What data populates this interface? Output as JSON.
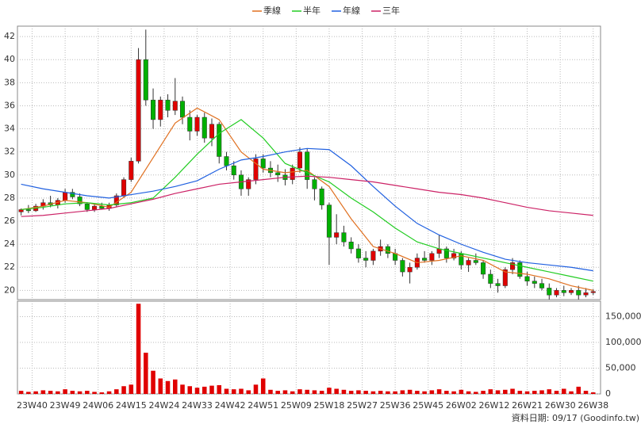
{
  "chart_data": {
    "type": "candlestick",
    "grid": true,
    "up_color": "#e00000",
    "down_color": "#00b000",
    "volume_color": "#e00000",
    "note": "資料日期: 09/17 (Goodinfo.tw)",
    "xlim": [
      -1,
      158
    ],
    "xticks": [
      {
        "value": 3,
        "label": "23W40"
      },
      {
        "value": 12,
        "label": "23W49"
      },
      {
        "value": 21,
        "label": "24W06"
      },
      {
        "value": 30,
        "label": "24W15"
      },
      {
        "value": 39,
        "label": "24W24"
      },
      {
        "value": 48,
        "label": "24W33"
      },
      {
        "value": 57,
        "label": "24W42"
      },
      {
        "value": 66,
        "label": "24W51"
      },
      {
        "value": 75,
        "label": "25W09"
      },
      {
        "value": 84,
        "label": "25W18"
      },
      {
        "value": 93,
        "label": "25W27"
      },
      {
        "value": 102,
        "label": "25W36"
      },
      {
        "value": 111,
        "label": "25W45"
      },
      {
        "value": 120,
        "label": "26W02"
      },
      {
        "value": 129,
        "label": "26W12"
      },
      {
        "value": 138,
        "label": "26W21"
      },
      {
        "value": 147,
        "label": "26W30"
      },
      {
        "value": 156,
        "label": "26W38"
      }
    ],
    "ylim": [
      19.2,
      42.9
    ],
    "yticks": [
      20,
      22,
      24,
      26,
      28,
      30,
      32,
      34,
      36,
      38,
      40,
      42
    ],
    "y2lim": [
      0,
      180000
    ],
    "y2ticks": [
      0,
      {
        "value": 50000,
        "label": "50,000"
      },
      {
        "value": 100000,
        "label": "100,000"
      },
      {
        "value": 150000,
        "label": "150,000"
      }
    ],
    "candles": {
      "x": [
        0,
        2,
        4,
        6,
        8,
        10,
        12,
        14,
        16,
        18,
        20,
        22,
        24,
        26,
        28,
        30,
        32,
        34,
        36,
        38,
        40,
        42,
        44,
        46,
        48,
        50,
        52,
        54,
        56,
        58,
        60,
        62,
        64,
        66,
        68,
        70,
        72,
        74,
        76,
        78,
        80,
        82,
        84,
        86,
        88,
        90,
        92,
        94,
        96,
        98,
        100,
        102,
        104,
        106,
        108,
        110,
        112,
        114,
        116,
        118,
        120,
        122,
        124,
        126,
        128,
        130,
        132,
        134,
        136,
        138,
        140,
        142,
        144,
        146,
        148,
        150,
        152,
        154,
        156
      ],
      "open": [
        26.8,
        27.0,
        26.9,
        27.3,
        27.6,
        27.4,
        27.8,
        28.5,
        28.1,
        27.5,
        27.0,
        27.3,
        27.1,
        27.4,
        28.2,
        29.6,
        31.2,
        40.0,
        36.5,
        34.8,
        36.5,
        35.6,
        36.4,
        35.0,
        33.8,
        35.0,
        33.2,
        34.4,
        31.6,
        30.8,
        30.0,
        28.8,
        29.6,
        31.4,
        30.6,
        30.2,
        30.0,
        29.6,
        30.6,
        32.0,
        29.6,
        28.8,
        27.4,
        24.6,
        25.0,
        24.2,
        23.6,
        22.8,
        22.6,
        23.4,
        23.8,
        23.2,
        22.6,
        21.6,
        22.0,
        22.8,
        22.6,
        23.2,
        23.6,
        22.8,
        23.2,
        22.2,
        22.6,
        22.4,
        21.4,
        20.6,
        20.4,
        21.8,
        22.4,
        21.2,
        20.8,
        20.6,
        20.2,
        19.6,
        20.0,
        19.8,
        20.0,
        19.6,
        19.8
      ],
      "high": [
        27.1,
        27.4,
        27.5,
        27.9,
        28.2,
        28.0,
        28.8,
        28.8,
        28.4,
        27.6,
        27.5,
        27.6,
        27.6,
        28.4,
        29.8,
        31.5,
        41.0,
        42.6,
        37.5,
        36.8,
        37.0,
        38.4,
        36.8,
        35.6,
        35.2,
        35.4,
        34.9,
        34.6,
        32.0,
        31.2,
        30.4,
        29.8,
        31.8,
        31.8,
        31.2,
        30.9,
        30.5,
        30.9,
        32.4,
        32.3,
        29.8,
        29.0,
        27.6,
        26.6,
        25.6,
        24.6,
        24.0,
        23.4,
        23.6,
        24.4,
        24.0,
        23.6,
        22.8,
        22.4,
        23.2,
        23.4,
        23.4,
        24.8,
        23.8,
        23.6,
        23.4,
        22.8,
        23.2,
        22.6,
        21.8,
        21.0,
        22.0,
        22.8,
        22.6,
        21.6,
        21.2,
        21.0,
        20.6,
        20.2,
        20.4,
        20.2,
        20.4,
        20.2,
        20.1
      ],
      "low": [
        26.5,
        26.7,
        26.8,
        27.0,
        27.2,
        27.1,
        27.6,
        27.9,
        27.3,
        26.8,
        26.8,
        27.0,
        26.9,
        27.2,
        28.0,
        29.4,
        31.0,
        36.0,
        34.0,
        34.2,
        35.0,
        35.2,
        34.4,
        33.0,
        33.4,
        32.8,
        32.5,
        31.0,
        30.4,
        29.6,
        28.2,
        28.2,
        29.2,
        30.2,
        29.8,
        29.4,
        29.1,
        29.2,
        30.2,
        28.8,
        27.8,
        27.0,
        22.2,
        24.0,
        23.8,
        23.2,
        22.4,
        22.0,
        22.2,
        23.0,
        22.8,
        22.2,
        21.2,
        20.6,
        21.8,
        22.4,
        22.2,
        22.8,
        22.4,
        22.6,
        21.8,
        21.6,
        22.2,
        21.0,
        20.2,
        19.8,
        20.2,
        21.4,
        21.0,
        20.4,
        20.2,
        20.0,
        19.2,
        19.4,
        19.5,
        19.6,
        19.2,
        19.4,
        19.6
      ],
      "close": [
        27.0,
        26.9,
        27.3,
        27.6,
        27.4,
        27.8,
        28.5,
        28.1,
        27.5,
        27.0,
        27.3,
        27.1,
        27.4,
        28.2,
        29.6,
        31.2,
        40.0,
        36.5,
        34.8,
        36.5,
        35.6,
        36.4,
        35.0,
        33.8,
        35.0,
        33.2,
        34.4,
        31.6,
        30.8,
        30.0,
        28.8,
        29.6,
        31.4,
        30.6,
        30.2,
        30.0,
        29.6,
        30.6,
        32.0,
        29.6,
        28.8,
        27.4,
        24.6,
        25.0,
        24.2,
        23.6,
        22.8,
        22.6,
        23.4,
        23.8,
        23.2,
        22.6,
        21.6,
        22.0,
        22.8,
        22.6,
        23.2,
        23.6,
        22.8,
        23.2,
        22.2,
        22.6,
        22.4,
        21.4,
        20.6,
        20.4,
        21.8,
        22.4,
        21.2,
        20.8,
        20.6,
        20.2,
        19.6,
        20.0,
        19.8,
        20.0,
        19.6,
        19.8,
        19.9
      ],
      "volume": [
        6000,
        4000,
        5000,
        7000,
        6000,
        5000,
        9000,
        6000,
        5000,
        6000,
        4000,
        3000,
        5000,
        9000,
        15000,
        18000,
        175000,
        80000,
        45000,
        30000,
        25000,
        28000,
        18000,
        15000,
        12000,
        14000,
        16000,
        17000,
        10000,
        9000,
        10000,
        7000,
        18000,
        30000,
        8000,
        6000,
        7000,
        5000,
        9000,
        8000,
        7000,
        6000,
        12000,
        10000,
        8000,
        6000,
        7000,
        6000,
        5000,
        6000,
        5000,
        5000,
        7000,
        8000,
        6000,
        5000,
        7000,
        9000,
        6000,
        5000,
        8000,
        5000,
        4000,
        6000,
        9000,
        7000,
        8000,
        10000,
        6000,
        5000,
        6000,
        7000,
        9000,
        6000,
        10000,
        5000,
        14000,
        6000,
        3000
      ]
    },
    "series": [
      {
        "name": "季線",
        "color": "#e07020",
        "x": [
          0,
          6,
          12,
          18,
          24,
          30,
          36,
          42,
          48,
          54,
          60,
          66,
          72,
          78,
          84,
          90,
          96,
          102,
          108,
          114,
          120,
          126,
          132,
          138,
          144,
          150,
          156
        ],
        "values": [
          27.0,
          27.3,
          27.8,
          27.6,
          27.2,
          28.5,
          31.5,
          34.5,
          35.8,
          34.8,
          32.0,
          30.5,
          30.2,
          30.4,
          29.0,
          26.2,
          23.8,
          23.2,
          22.4,
          22.6,
          23.0,
          22.6,
          21.6,
          21.4,
          21.0,
          20.4,
          20.0
        ]
      },
      {
        "name": "半年",
        "color": "#22cc22",
        "x": [
          0,
          6,
          12,
          18,
          24,
          30,
          36,
          42,
          48,
          54,
          60,
          66,
          72,
          78,
          84,
          90,
          96,
          102,
          108,
          114,
          120,
          126,
          132,
          138,
          144,
          150,
          156
        ],
        "values": [
          27.0,
          27.2,
          27.5,
          27.6,
          27.4,
          27.6,
          28.0,
          29.8,
          31.8,
          33.6,
          34.8,
          33.2,
          31.0,
          30.2,
          29.4,
          28.0,
          26.8,
          25.4,
          24.2,
          23.6,
          23.2,
          22.8,
          22.4,
          22.0,
          21.6,
          21.2,
          20.8
        ]
      },
      {
        "name": "年線",
        "color": "#2060e0",
        "x": [
          0,
          6,
          12,
          18,
          24,
          30,
          36,
          42,
          48,
          54,
          60,
          66,
          72,
          78,
          84,
          90,
          96,
          102,
          108,
          114,
          120,
          126,
          132,
          138,
          144,
          150,
          156
        ],
        "values": [
          29.2,
          28.8,
          28.5,
          28.2,
          28.0,
          28.3,
          28.6,
          29.0,
          29.5,
          30.5,
          31.3,
          31.6,
          32.0,
          32.3,
          32.2,
          30.8,
          29.0,
          27.3,
          25.8,
          24.8,
          24.0,
          23.3,
          22.7,
          22.4,
          22.2,
          22.0,
          21.7
        ]
      },
      {
        "name": "三年",
        "color": "#cc2266",
        "x": [
          0,
          6,
          12,
          18,
          24,
          30,
          36,
          42,
          48,
          54,
          60,
          66,
          72,
          78,
          84,
          90,
          96,
          102,
          108,
          114,
          120,
          126,
          132,
          138,
          144,
          150,
          156
        ],
        "values": [
          26.4,
          26.5,
          26.7,
          26.9,
          27.1,
          27.5,
          27.9,
          28.4,
          28.8,
          29.2,
          29.4,
          29.6,
          29.8,
          29.9,
          29.8,
          29.6,
          29.4,
          29.1,
          28.8,
          28.5,
          28.3,
          28.0,
          27.6,
          27.2,
          26.9,
          26.7,
          26.5
        ]
      }
    ]
  }
}
